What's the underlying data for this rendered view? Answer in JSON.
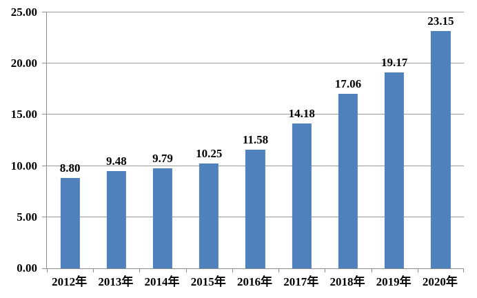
{
  "chart_data": {
    "type": "bar",
    "title": "",
    "xlabel": "",
    "ylabel": "",
    "categories": [
      "2012年",
      "2013年",
      "2014年",
      "2015年",
      "2016年",
      "2017年",
      "2018年",
      "2019年",
      "2020年"
    ],
    "values": [
      8.8,
      9.48,
      9.79,
      10.25,
      11.58,
      14.18,
      17.06,
      19.17,
      23.15
    ],
    "value_labels": [
      "8.80",
      "9.48",
      "9.79",
      "10.25",
      "11.58",
      "14.18",
      "17.06",
      "19.17",
      "23.15"
    ],
    "ylim": [
      0,
      25
    ],
    "ytick_interval": 5,
    "ytick_labels": [
      "0.00",
      "5.00",
      "10.00",
      "15.00",
      "20.00",
      "25.00"
    ],
    "grid": true,
    "legend": false,
    "colors": {
      "bar": "#4F81BD",
      "gridline": "#9a9a9a",
      "axis": "#8c8c8c",
      "text": "#000000",
      "background": "#ffffff"
    }
  }
}
